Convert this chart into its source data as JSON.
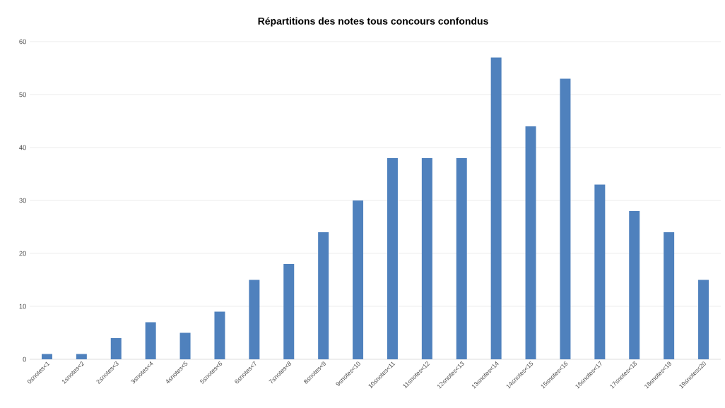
{
  "chart_data": {
    "type": "bar",
    "title": "Répartitions des notes tous concours confondus",
    "categories": [
      "0≤notes<1",
      "1≤notes<2",
      "2≤notes<3",
      "3≤notes<4",
      "4≤notes<5",
      "5≤notes<6",
      "6≤notes<7",
      "7≤notes<8",
      "8≤notes<9",
      "9≤notes<10",
      "10≤notes<11",
      "11≤notes<12",
      "12≤notes<13",
      "13≤notes<14",
      "14≤notes<15",
      "15≤notes<16",
      "16≤notes<17",
      "17≤notes<18",
      "18≤notes<19",
      "19≤notes≤20"
    ],
    "values": [
      1,
      1,
      4,
      7,
      5,
      9,
      15,
      18,
      24,
      30,
      38,
      38,
      38,
      57,
      44,
      53,
      33,
      28,
      24,
      15
    ],
    "color": "#4f81bd",
    "ylim": [
      0,
      60
    ],
    "yticks": [
      0,
      10,
      20,
      30,
      40,
      50,
      60
    ],
    "grid": "y"
  }
}
